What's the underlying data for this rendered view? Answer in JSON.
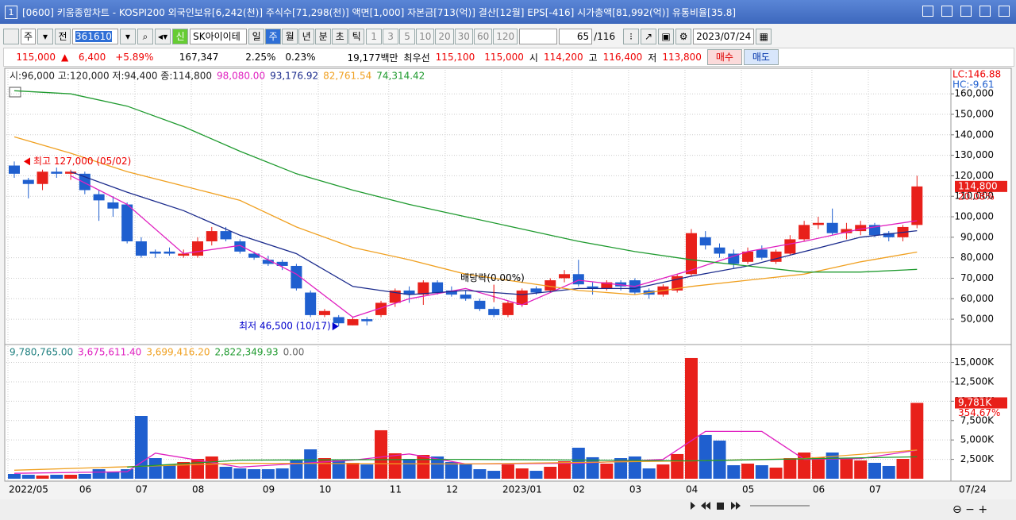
{
  "window": {
    "number": "1",
    "title": "[0600] 키움종합차트 - KOSPI200 외국인보유[6,242(천)] 주식수[71,298(천)] 액면[1,000] 자본금[713(억)] 결산[12월] EPS[-416] 시가총액[81,992(억)] 유통비율[35.8]"
  },
  "toolbar": {
    "period": "주",
    "all": "전",
    "code": "361610",
    "credit": "신",
    "name": "SK아이이테",
    "intervals": [
      "일",
      "주",
      "월",
      "년",
      "분",
      "초",
      "틱"
    ],
    "minutes": [
      "1",
      "3",
      "5",
      "10",
      "20",
      "30",
      "60",
      "120"
    ],
    "count": "65",
    "total": "/116",
    "date": "2023/07/24"
  },
  "quote": {
    "price": "115,000",
    "arrow": "▲",
    "change": "6,400",
    "change_rate": "+5.89%",
    "volume": "167,347",
    "volume_rate": "2.25%",
    "turnover": "0.23%",
    "amount": "19,177백만",
    "best_label": "최우선",
    "ask": "115,100",
    "bid": "115,000",
    "open_label": "시",
    "open": "114,200",
    "high_label": "고",
    "high": "116,400",
    "low_label": "저",
    "low": "113,800",
    "buy": "매수",
    "sell": "매도"
  },
  "chart_data": [
    {
      "type": "candlestick",
      "legend_text": "시:96,000 고:120,000 저:94,400 종:114,800",
      "up_color": "#e8201a",
      "down_color": "#1f5fcf",
      "open": [
        125000,
        118000,
        116000,
        122000,
        121000,
        121000,
        111000,
        107000,
        106000,
        88000,
        83000,
        83000,
        81000,
        81000,
        88000,
        93000,
        88000,
        82000,
        79000,
        78000,
        76000,
        63000,
        52000,
        51000,
        47000,
        50000,
        52000,
        58000,
        64000,
        62000,
        68000,
        64000,
        62000,
        59000,
        55000,
        52000,
        57000,
        65000,
        64000,
        70000,
        72000,
        66000,
        65000,
        68000,
        69000,
        64000,
        62000,
        64000,
        72000,
        90000,
        85000,
        82000,
        78000,
        84000,
        78000,
        82000,
        89000,
        96000,
        97000,
        92000,
        93000,
        96000,
        92000,
        90000,
        96000
      ],
      "high": [
        127000,
        119000,
        123000,
        124000,
        123000,
        122000,
        113000,
        110000,
        107000,
        90000,
        84000,
        85000,
        84000,
        90000,
        95000,
        95000,
        89000,
        83000,
        81000,
        79000,
        77000,
        64000,
        55000,
        52000,
        51000,
        51000,
        59000,
        65000,
        66000,
        69000,
        69000,
        66000,
        64000,
        60000,
        56000,
        59000,
        65000,
        66000,
        70000,
        74000,
        79000,
        68000,
        69000,
        69000,
        70000,
        65000,
        67000,
        72000,
        94000,
        93000,
        87000,
        84000,
        85000,
        86000,
        84000,
        91000,
        98000,
        100000,
        104000,
        97000,
        98000,
        97000,
        93000,
        96000,
        120000
      ],
      "low": [
        119000,
        109000,
        113000,
        119000,
        118000,
        111000,
        98000,
        100000,
        87000,
        80000,
        80000,
        81000,
        80000,
        80000,
        86000,
        88000,
        82000,
        79000,
        76000,
        74000,
        64000,
        51000,
        51000,
        46500,
        47000,
        47000,
        51000,
        56000,
        58000,
        57000,
        62000,
        61000,
        59000,
        54000,
        51000,
        51000,
        56000,
        62000,
        63000,
        68000,
        66000,
        62000,
        64000,
        64000,
        62000,
        60000,
        61000,
        63000,
        71000,
        84000,
        80000,
        75000,
        77000,
        79000,
        77000,
        81000,
        88000,
        94000,
        91000,
        89000,
        91000,
        90000,
        88000,
        88000,
        94400
      ],
      "close": [
        121000,
        116000,
        122000,
        121000,
        122000,
        113000,
        108000,
        104000,
        88000,
        81000,
        82000,
        82000,
        82000,
        88000,
        93000,
        89000,
        83000,
        80000,
        77000,
        76000,
        65000,
        52000,
        54000,
        48000,
        50000,
        49000,
        58000,
        64000,
        62000,
        68000,
        63000,
        62000,
        60000,
        55000,
        52000,
        58000,
        64000,
        63000,
        69000,
        72000,
        67000,
        65000,
        68000,
        66000,
        63000,
        62000,
        66000,
        71000,
        92000,
        86000,
        82000,
        77000,
        83000,
        80000,
        83000,
        89000,
        96000,
        97000,
        92000,
        94000,
        96000,
        91000,
        90000,
        95000,
        114800
      ],
      "series": [
        {
          "name": "98,080.00",
          "color": "#e020c0",
          "x": [
            4,
            8,
            12,
            16,
            20,
            24,
            28,
            32,
            36,
            40,
            44,
            48,
            52,
            56,
            60,
            64
          ],
          "values": [
            120000,
            106000,
            82000,
            86000,
            72000,
            51000,
            60000,
            65000,
            57000,
            69000,
            66000,
            74000,
            83000,
            88000,
            94000,
            98080
          ]
        },
        {
          "name": "93,176.92",
          "color": "#1a2a8c",
          "x": [
            4,
            8,
            12,
            16,
            20,
            24,
            28,
            32,
            36,
            40,
            44,
            48,
            52,
            56,
            60,
            64
          ],
          "values": [
            122000,
            112000,
            103000,
            91000,
            82000,
            66000,
            62000,
            64000,
            62000,
            65000,
            65000,
            71000,
            76000,
            83000,
            90000,
            93177
          ]
        },
        {
          "name": "82,761.54",
          "color": "#f0a020",
          "x": [
            0,
            4,
            8,
            12,
            16,
            20,
            24,
            28,
            32,
            36,
            40,
            44,
            48,
            52,
            56,
            60,
            64
          ],
          "values": [
            139000,
            131000,
            122000,
            115000,
            108000,
            95000,
            85000,
            79000,
            72000,
            68000,
            64000,
            62000,
            66000,
            69000,
            72000,
            78000,
            82762
          ]
        },
        {
          "name": "74,314.42",
          "color": "#1e9a2e",
          "x": [
            0,
            4,
            8,
            12,
            16,
            20,
            24,
            28,
            32,
            36,
            40,
            44,
            48,
            52,
            56,
            60,
            64
          ],
          "values": [
            161500,
            160000,
            154000,
            144000,
            132000,
            121000,
            113000,
            106000,
            100000,
            94000,
            88000,
            83000,
            79000,
            76000,
            73000,
            73000,
            74314
          ]
        }
      ],
      "ylim": [
        38400,
        171700
      ],
      "yticks": [
        {
          "value": 50000,
          "label": "50,000"
        },
        {
          "value": 60000,
          "label": "60,000"
        },
        {
          "value": 70000,
          "label": "70,000"
        },
        {
          "value": 80000,
          "label": "80,000"
        },
        {
          "value": 90000,
          "label": "90,000"
        },
        {
          "value": 100000,
          "label": "100,000"
        },
        {
          "value": 110000,
          "label": "110,000"
        },
        {
          "value": 120000,
          "label": "120,000"
        },
        {
          "value": 130000,
          "label": "130,000"
        },
        {
          "value": 140000,
          "label": "140,000"
        },
        {
          "value": 150000,
          "label": "150,000"
        },
        {
          "value": 160000,
          "label": "160,000"
        }
      ],
      "annotations": [
        "최고 127,000 (05/02)",
        "최저 46,500 (10/17)",
        "배당락(0.00%)"
      ],
      "lc_label": "LC:146.88",
      "hc_label": "HC:-9.61",
      "last_label": "114,800",
      "rate_label": "20.08%",
      "grid": true
    },
    {
      "type": "bar",
      "name": "9,780,765.00",
      "name_color": "#208080",
      "categories": [
        "2022/05",
        null,
        null,
        null,
        null,
        "06",
        null,
        null,
        null,
        "07",
        null,
        null,
        null,
        "08",
        null,
        null,
        null,
        null,
        "09",
        null,
        null,
        null,
        "10",
        null,
        null,
        null,
        null,
        "11",
        null,
        null,
        null,
        "12",
        null,
        null,
        null,
        "2023/01",
        null,
        null,
        null,
        null,
        "02",
        null,
        null,
        null,
        "03",
        null,
        null,
        null,
        "04",
        null,
        null,
        null,
        "05",
        null,
        null,
        null,
        null,
        "06",
        null,
        null,
        null,
        "07",
        null,
        null,
        null
      ],
      "values": [
        615,
        510,
        410,
        510,
        510,
        615,
        1230,
        820,
        1230,
        8090,
        2660,
        1840,
        2150,
        2560,
        2870,
        1540,
        1330,
        1230,
        1230,
        1330,
        2460,
        3790,
        2660,
        2360,
        2050,
        1840,
        6250,
        3280,
        2560,
        3070,
        2870,
        2150,
        1950,
        1230,
        1020,
        1840,
        1330,
        1020,
        1540,
        2250,
        4000,
        2770,
        1950,
        2660,
        2870,
        1330,
        1840,
        3180,
        15570,
        5640,
        4920,
        1740,
        1950,
        1740,
        1430,
        2660,
        3380,
        2770,
        3380,
        2560,
        2360,
        2050,
        1640,
        2560,
        9781
      ],
      "series": [
        {
          "name": "3,675,611.40",
          "color": "#e020c0",
          "x": [
            0,
            8,
            10,
            16,
            24,
            28,
            32,
            40,
            46,
            49,
            53,
            56,
            60,
            64
          ],
          "values": [
            700,
            900,
            3300,
            1500,
            2400,
            3200,
            1900,
            2000,
            2500,
            6100,
            6100,
            2500,
            2600,
            3676
          ]
        },
        {
          "name": "3,699,416.20",
          "color": "#f0a020",
          "x": [
            0,
            16,
            32,
            48,
            56,
            64
          ],
          "values": [
            1100,
            2000,
            1900,
            2300,
            2600,
            3699
          ]
        },
        {
          "name": "2,822,349.93",
          "color": "#1e9a2e",
          "x": [
            8,
            16,
            32,
            48,
            64
          ],
          "values": [
            1500,
            2400,
            2500,
            2300,
            2822
          ]
        }
      ],
      "extra_legend": "0.00",
      "ylim": [
        0,
        17000
      ],
      "yticks": [
        {
          "value": 2500,
          "label": "2,500K"
        },
        {
          "value": 5000,
          "label": "5,000K"
        },
        {
          "value": 7500,
          "label": "7,500K"
        },
        {
          "value": 10000,
          "label": "10,000K"
        },
        {
          "value": 12500,
          "label": "12,500K"
        },
        {
          "value": 15000,
          "label": "15,000K"
        }
      ],
      "last_label": "9,781K",
      "rate_label": "354.67%",
      "cursor_label": "07/24",
      "grid": true
    }
  ]
}
